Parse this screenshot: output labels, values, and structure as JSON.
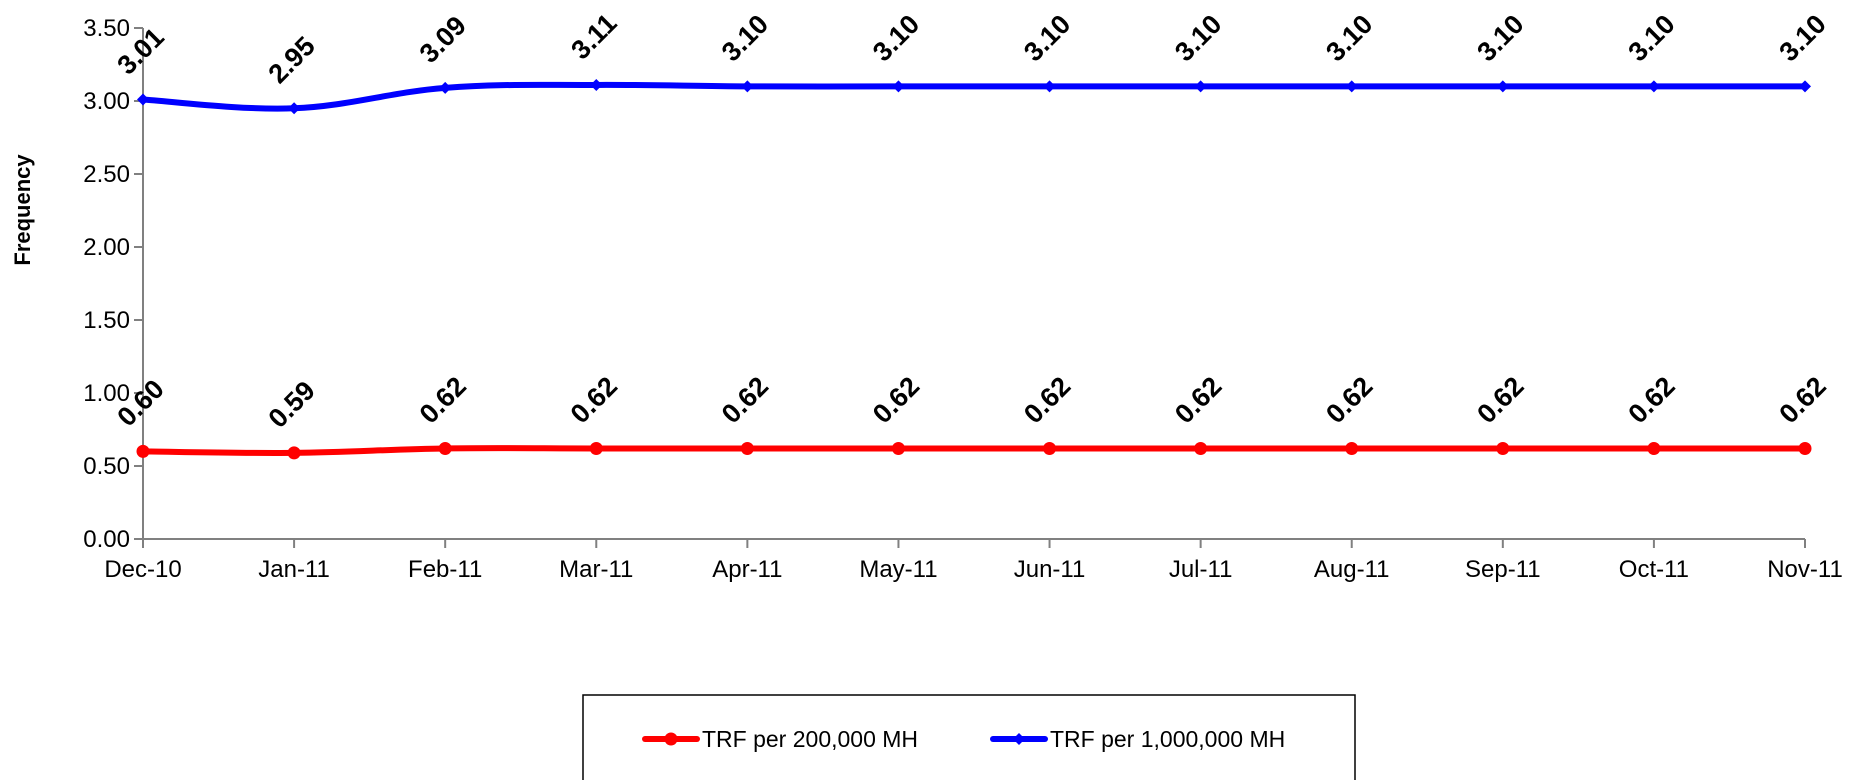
{
  "chart_data": {
    "type": "line",
    "title": "",
    "xlabel": "",
    "ylabel": "Frequency",
    "categories": [
      "Dec-10",
      "Jan-11",
      "Feb-11",
      "Mar-11",
      "Apr-11",
      "May-11",
      "Jun-11",
      "Jul-11",
      "Aug-11",
      "Sep-11",
      "Oct-11",
      "Nov-11"
    ],
    "ylim": [
      0,
      3.5
    ],
    "yticks": [
      "0.00",
      "0.50",
      "1.00",
      "1.50",
      "2.00",
      "2.50",
      "3.00",
      "3.50"
    ],
    "grid": false,
    "legend_position": "bottom",
    "series": [
      {
        "name": "TRF per 200,000 MH",
        "color": "#ff0000",
        "marker": "circle",
        "values": [
          0.6,
          0.59,
          0.62,
          0.62,
          0.62,
          0.62,
          0.62,
          0.62,
          0.62,
          0.62,
          0.62,
          0.62
        ],
        "labels": [
          "0.60",
          "0.59",
          "0.62",
          "0.62",
          "0.62",
          "0.62",
          "0.62",
          "0.62",
          "0.62",
          "0.62",
          "0.62",
          "0.62"
        ]
      },
      {
        "name": "TRF per 1,000,000 MH",
        "color": "#0000ff",
        "marker": "diamond",
        "values": [
          3.01,
          2.95,
          3.09,
          3.11,
          3.1,
          3.1,
          3.1,
          3.1,
          3.1,
          3.1,
          3.1,
          3.1
        ],
        "labels": [
          "3.01",
          "2.95",
          "3.09",
          "3.11",
          "3.10",
          "3.10",
          "3.10",
          "3.10",
          "3.10",
          "3.10",
          "3.10",
          "3.10"
        ]
      }
    ]
  }
}
